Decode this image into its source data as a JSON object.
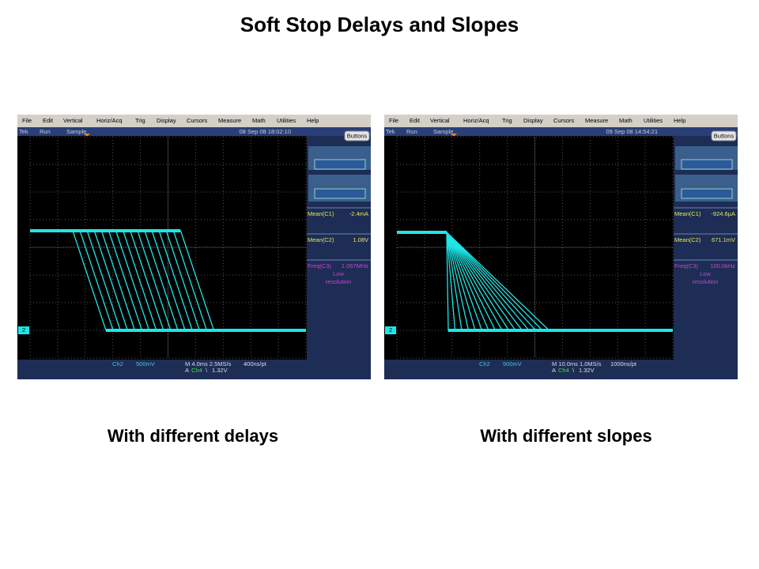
{
  "title": "Soft Stop Delays and Slopes",
  "panels": [
    {
      "menu": [
        "File",
        "Edit",
        "Vertical",
        "Horiz/Acq",
        "Trig",
        "Display",
        "Cursors",
        "Measure",
        "Math",
        "Utilities",
        "Help"
      ],
      "status": {
        "brand": "Tek",
        "state": "Run",
        "mode": "Sample",
        "datetime": "08 Sep 08 18:02:10"
      },
      "button": "Buttons",
      "readouts": [
        {
          "label": "Mean(C1)",
          "value": "-2.4mA"
        },
        {
          "label": "Mean(C2)",
          "value": "1.08V"
        },
        {
          "label": "Freq(C3)",
          "value": "1.067MHz"
        }
      ],
      "note": [
        "Low",
        "resolution"
      ],
      "channel_marker": "2",
      "bottom": {
        "channel": "Ch2",
        "scale": "500mV",
        "timebase": "M 4.0ms 2.5MS/s",
        "resolution": "400ns/pt",
        "trigger_source_prefix": "A",
        "trigger_channel": "Ch4",
        "trigger_slope": "\\",
        "trigger_level": "1.32V"
      },
      "caption": "With different delays"
    },
    {
      "menu": [
        "File",
        "Edit",
        "Vertical",
        "Horiz/Acq",
        "Trig",
        "Display",
        "Cursors",
        "Measure",
        "Math",
        "Utilities",
        "Help"
      ],
      "status": {
        "brand": "Tek",
        "state": "Run",
        "mode": "Sample",
        "datetime": "09 Sep 08 14:54:21"
      },
      "button": "Buttons",
      "readouts": [
        {
          "label": "Mean(C1)",
          "value": "-924.6µA"
        },
        {
          "label": "Mean(C2)",
          "value": "671.1mV"
        },
        {
          "label": "Freq(C3)",
          "value": "100.0kHz"
        }
      ],
      "note": [
        "Low",
        "resolution"
      ],
      "channel_marker": "2",
      "bottom": {
        "channel": "Ch2",
        "scale": "500mV",
        "timebase": "M 10.0ms 1.0MS/s",
        "resolution": "1000ns/pt",
        "trigger_source_prefix": "A",
        "trigger_channel": "Ch4",
        "trigger_slope": "\\",
        "trigger_level": "1.32V"
      },
      "caption": "With different slopes"
    }
  ]
}
